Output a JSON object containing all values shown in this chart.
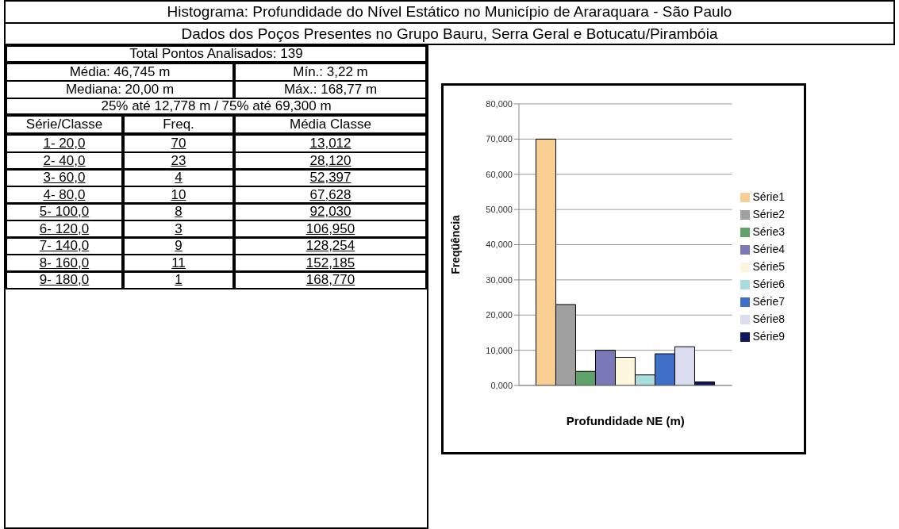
{
  "chart_data": {
    "type": "bar",
    "title": "Histograma: Profundidade do Nível Estático no Município de Araraquara - São Paulo",
    "subtitle": "Dados dos Poços Presentes no Grupo Bauru, Serra Geral e Botucatu/Pirambóia",
    "annotations": [
      "Total Pontos Analisados: 139",
      "Média: 46,745 m",
      "Mín.: 3,22 m",
      "Mediana: 20,00 m",
      "Máx.: 168,77 m",
      "25% até 12,778 m / 75% até 69,300 m",
      "Série/Classe",
      "Freq.",
      "Média Classe",
      "1- 20,0",
      "70",
      "13,012",
      "2- 40,0",
      "23",
      "28,120",
      "3- 60,0",
      "4",
      "52,397",
      "4- 80,0",
      "10",
      "67,628",
      "5- 100,0",
      "8",
      "92,030",
      "6- 120,0",
      "3",
      "106,950",
      "7- 140,0",
      "9",
      "128,254",
      "8- 160,0",
      "11",
      "152,185",
      "9- 180,0",
      "1",
      "168,770"
    ],
    "xlabel": "Profundidade NE (m)",
    "ylabel": "Freqüência",
    "categories": [
      null
    ],
    "series": [
      {
        "name": "Série1",
        "color": "#f9cf94",
        "values": [
          70
        ]
      },
      {
        "name": "Série2",
        "color": "#a0a0a0",
        "values": [
          23
        ]
      },
      {
        "name": "Série3",
        "color": "#5fa36b",
        "values": [
          4
        ]
      },
      {
        "name": "Série4",
        "color": "#7b78b8",
        "values": [
          10
        ]
      },
      {
        "name": "Série5",
        "color": "#fbf6dc",
        "values": [
          8
        ]
      },
      {
        "name": "Série6",
        "color": "#a9dcdc",
        "values": [
          3
        ]
      },
      {
        "name": "Série7",
        "color": "#3f70c8",
        "values": [
          9
        ]
      },
      {
        "name": "Série8",
        "color": "#dcdcf0",
        "values": [
          11
        ]
      },
      {
        "name": "Série9",
        "color": "#101560",
        "values": [
          1
        ]
      }
    ],
    "ylim": [
      0,
      80
    ],
    "yticks": [
      {
        "value": 0,
        "label": "0,000"
      },
      {
        "value": 10,
        "label": "10,000"
      },
      {
        "value": 20,
        "label": "20,000"
      },
      {
        "value": 30,
        "label": "30,000"
      },
      {
        "value": 40,
        "label": "40,000"
      },
      {
        "value": 50,
        "label": "50,000"
      },
      {
        "value": 60,
        "label": "60,000"
      },
      {
        "value": 70,
        "label": "70,000"
      },
      {
        "value": 80,
        "label": "80,000"
      }
    ],
    "grid": "y",
    "legend": "right",
    "tick_labels": "y"
  }
}
